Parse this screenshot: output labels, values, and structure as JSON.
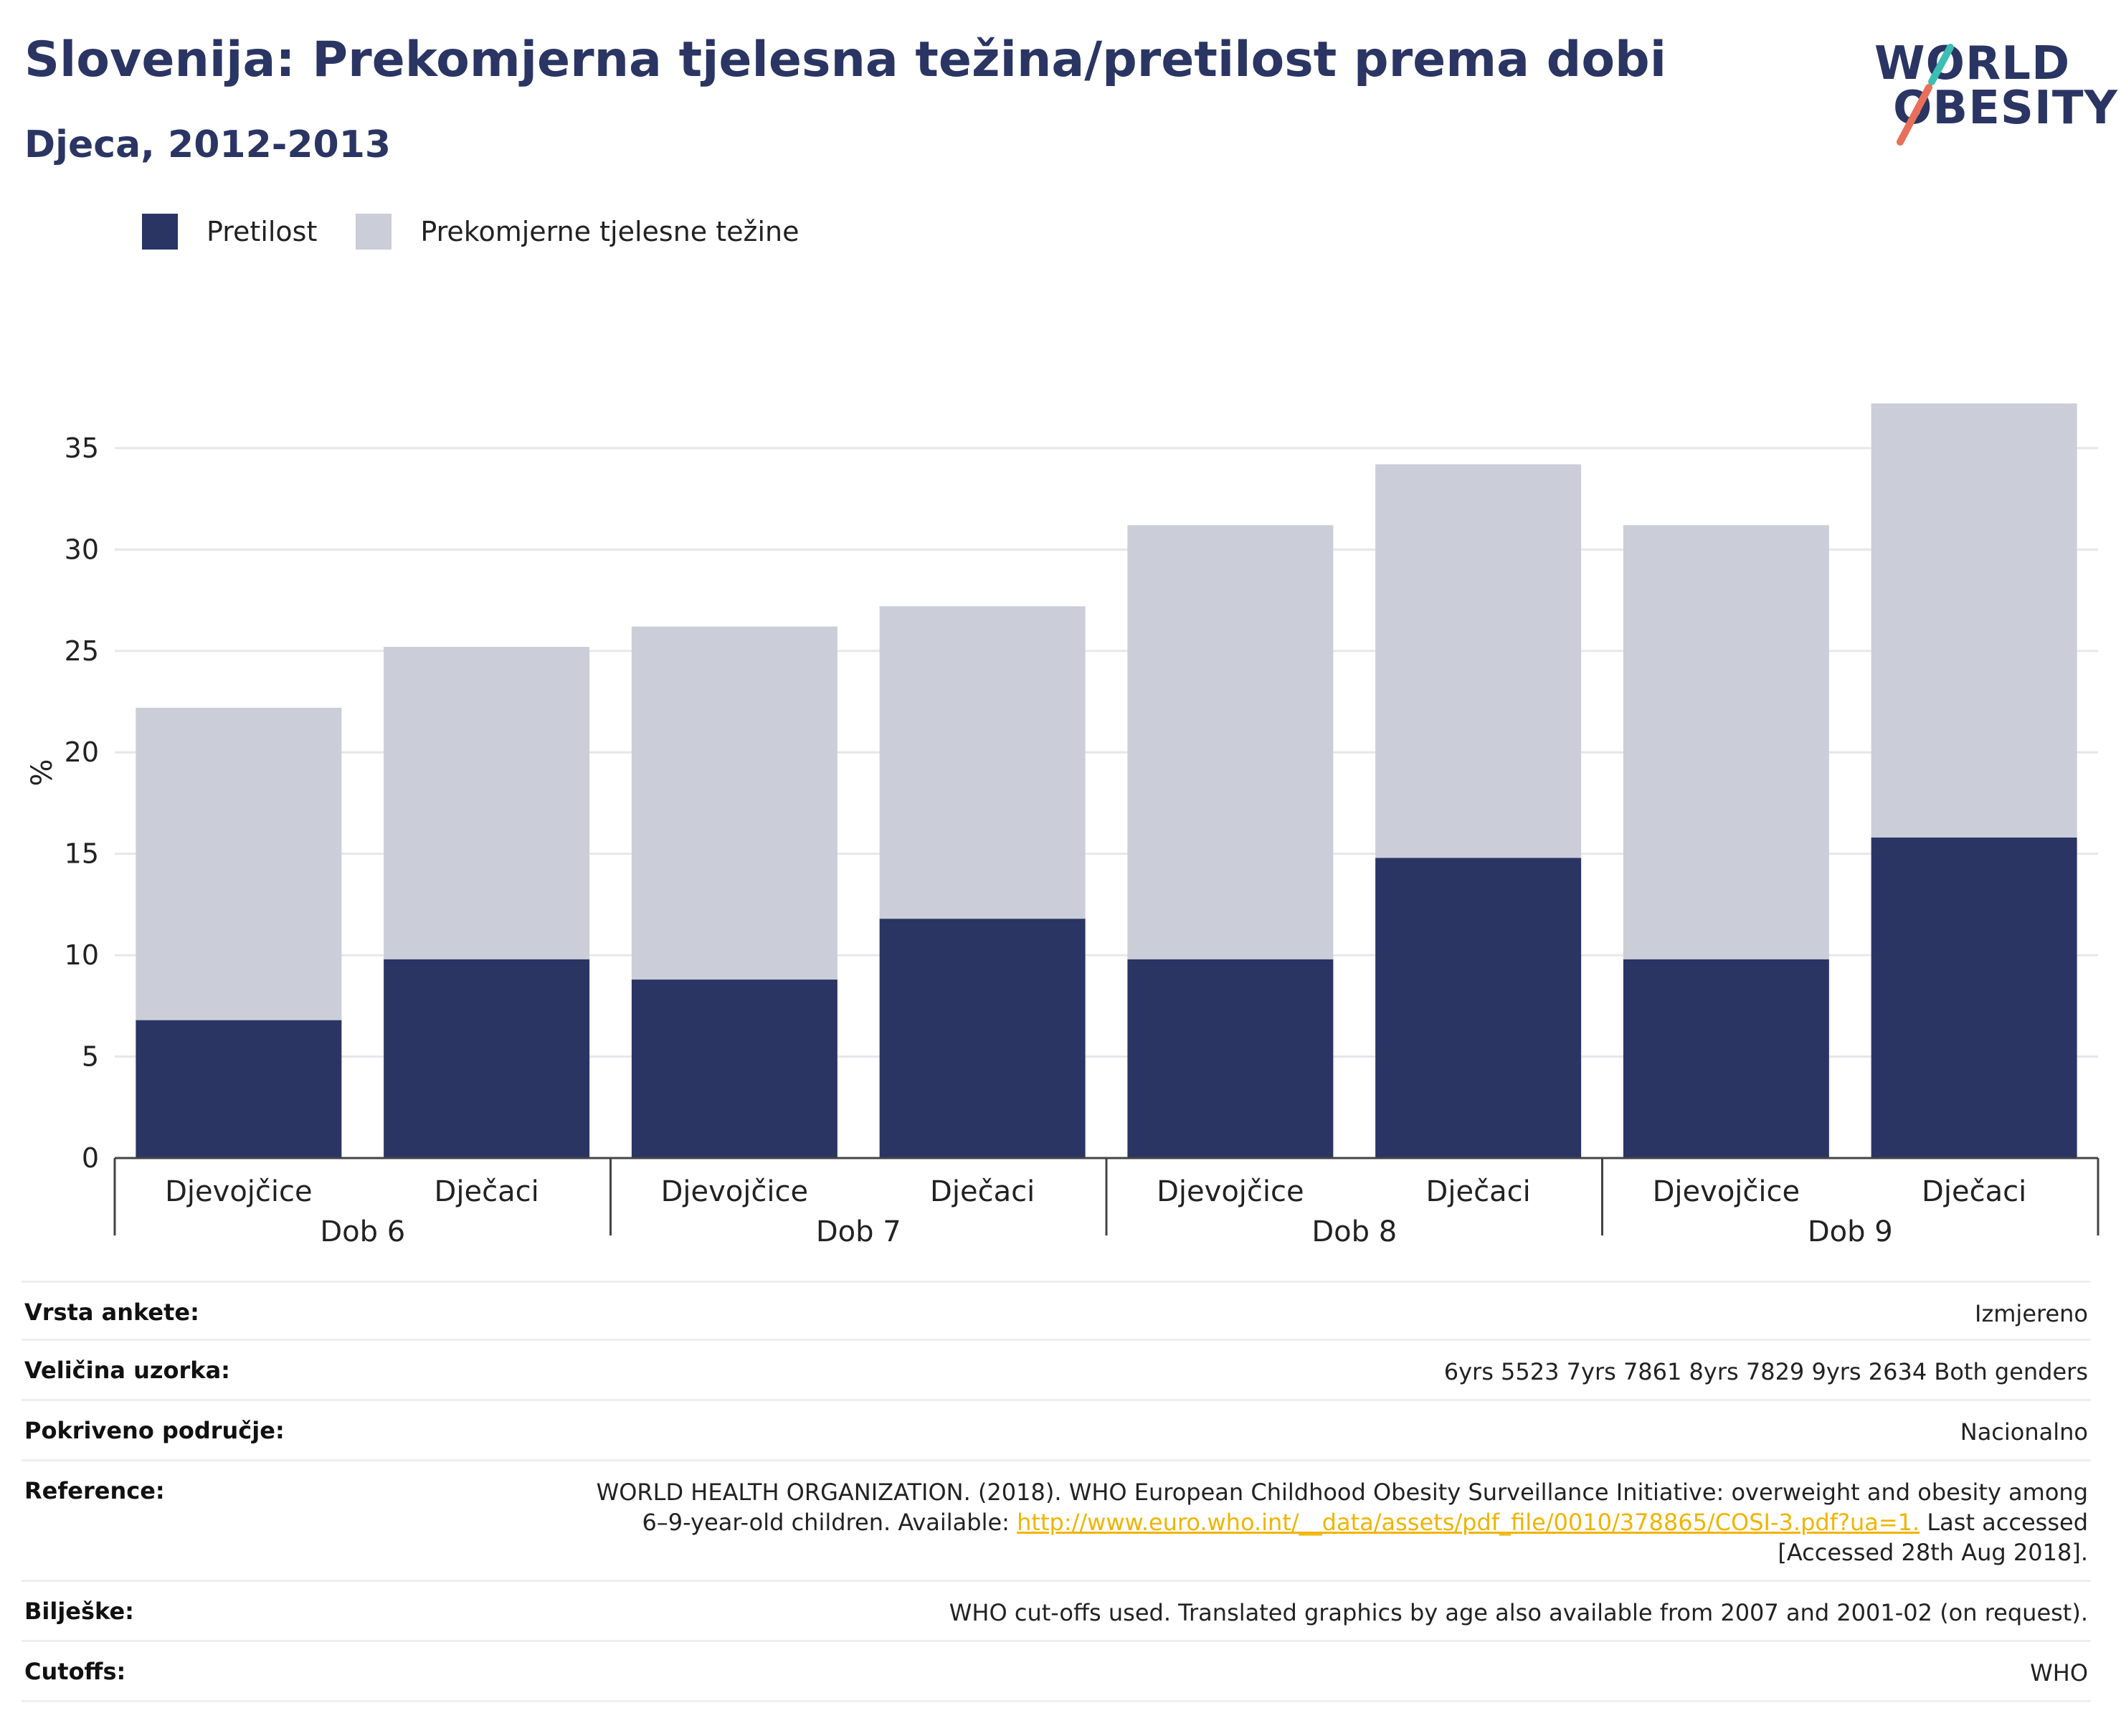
{
  "header": {
    "title": "Slovenija: Prekomjerna tjelesna težina/pretilost prema dobi",
    "subtitle": "Djeca, 2012-2013"
  },
  "logo": {
    "line1": "WORLD",
    "line2": "OBESITY",
    "accent_teal": "#3bbfb3",
    "accent_coral": "#e8705a"
  },
  "colors": {
    "obesity": "#2a3563",
    "overweight": "#cbcdd8",
    "grid": "#e6e6ec",
    "axis": "#444444"
  },
  "legend": [
    {
      "label": "Pretilost",
      "color": "#2a3563"
    },
    {
      "label": "Prekomjerne tjelesne težine",
      "color": "#cbcdd8"
    }
  ],
  "chart_data": {
    "type": "bar",
    "stacked": true,
    "ylabel": "%",
    "xlabel": "",
    "ylim": [
      0,
      38
    ],
    "yticks": [
      0,
      5,
      10,
      15,
      20,
      25,
      30,
      35
    ],
    "grid": true,
    "legend_position": "top-left",
    "groups": [
      {
        "label": "Dob 6",
        "categories": [
          "Djevojčice",
          "Dječaci"
        ]
      },
      {
        "label": "Dob 7",
        "categories": [
          "Djevojčice",
          "Dječaci"
        ]
      },
      {
        "label": "Dob 8",
        "categories": [
          "Djevojčice",
          "Dječaci"
        ]
      },
      {
        "label": "Dob 9",
        "categories": [
          "Djevojčice",
          "Dječaci"
        ]
      }
    ],
    "series": [
      {
        "name": "Pretilost",
        "values": [
          6.8,
          9.8,
          8.8,
          11.8,
          9.8,
          14.8,
          9.8,
          15.8
        ]
      },
      {
        "name": "Prekomjerne tjelesne težine",
        "values": [
          15.4,
          15.4,
          17.4,
          15.4,
          21.4,
          19.4,
          21.4,
          21.4
        ]
      }
    ]
  },
  "meta": {
    "survey_type_label": "Vrsta ankete:",
    "survey_type_value": "Izmjereno",
    "sample_size_label": "Veličina uzorka:",
    "sample_size_value": "6yrs 5523 7yrs 7861 8yrs 7829 9yrs 2634 Both genders",
    "coverage_label": "Pokriveno područje:",
    "coverage_value": "Nacionalno",
    "reference_label": "Reference:",
    "reference_text_1": "WORLD HEALTH ORGANIZATION. (2018). WHO European Childhood Obesity Surveillance Initiative: overweight and obesity among",
    "reference_text_2": "6–9-year-old children. Available: ",
    "reference_link": "http://www.euro.who.int/__data/assets/pdf_file/0010/378865/COSI-3.pdf?ua=1.",
    "reference_text_3": " Last accessed",
    "reference_text_4": "[Accessed 28th Aug 2018].",
    "notes_label": "Bilješke:",
    "notes_value": "WHO cut-offs used. Translated graphics by age also available from 2007 and 2001-02 (on request).",
    "cutoffs_label": "Cutoffs:",
    "cutoffs_value": "WHO"
  }
}
